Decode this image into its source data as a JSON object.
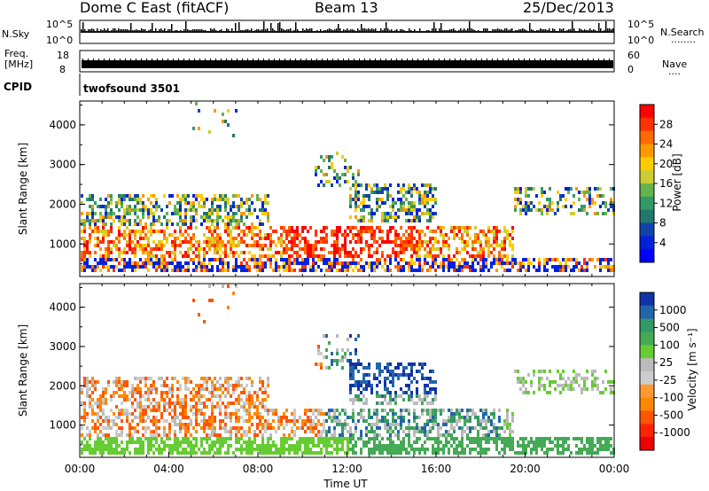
{
  "header": {
    "station": "Dome C East (fitACF)",
    "beam": "Beam 13",
    "date": "25/Dec/2013"
  },
  "summary_panels": {
    "nsky_label": "N.Sky",
    "nsearch_label": "N.Search",
    "nsearch_dots": "........",
    "nsky_scale_top": "10^5",
    "nsky_scale_bottom": "10^0",
    "nsearch_scale_top": "10^5",
    "nsearch_scale_bottom": "10^0",
    "freq_label_1": "Freq.",
    "freq_label_2": "[MHz]",
    "freq_top": "18",
    "freq_bottom": "8",
    "nave_label": "Nave",
    "nave_dots": "....",
    "nave_top": "60",
    "nave_bottom": "0",
    "cpid_label": "CPID",
    "cpid_value": "twofsound 3501"
  },
  "chart_data": [
    {
      "type": "heatmap",
      "panel": "power",
      "ylabel": "Slant Range [km]",
      "ylim": [
        180,
        4600
      ],
      "y_ticks": [
        "1000",
        "2000",
        "3000",
        "4000"
      ],
      "colorbar_label": "Power [dB]",
      "colorbar_ticks": [
        "28",
        "24",
        "20",
        "16",
        "12",
        "8",
        "4"
      ],
      "colorbar_colors": [
        "#ff0000",
        "#ff3300",
        "#ff6a00",
        "#ff9900",
        "#ffcc00",
        "#cccc33",
        "#66b24c",
        "#339966",
        "#22776e",
        "#1144aa",
        "#0022dd",
        "#0000ff"
      ]
    },
    {
      "type": "heatmap",
      "panel": "velocity",
      "ylabel": "Slant Range [km]",
      "ylim": [
        180,
        4600
      ],
      "y_ticks": [
        "1000",
        "2000",
        "3000",
        "4000"
      ],
      "xlabel": "Time UT",
      "x_ticks": [
        "00:00",
        "04:00",
        "08:00",
        "12:00",
        "16:00",
        "20:00",
        "00:00"
      ],
      "colorbar_label": "Velocity [m s⁻¹]",
      "colorbar_ticks": [
        "1000",
        "500",
        "100",
        "25",
        "-25",
        "-100",
        "-500",
        "-1000"
      ],
      "colorbar_colors": [
        "#1133aa",
        "#2266aa",
        "#339966",
        "#44aa55",
        "#66cc33",
        "#bbbbbb",
        "#cccccc",
        "#ff9933",
        "#ff8800",
        "#ff5500",
        "#ff2200",
        "#ee0000"
      ]
    }
  ]
}
